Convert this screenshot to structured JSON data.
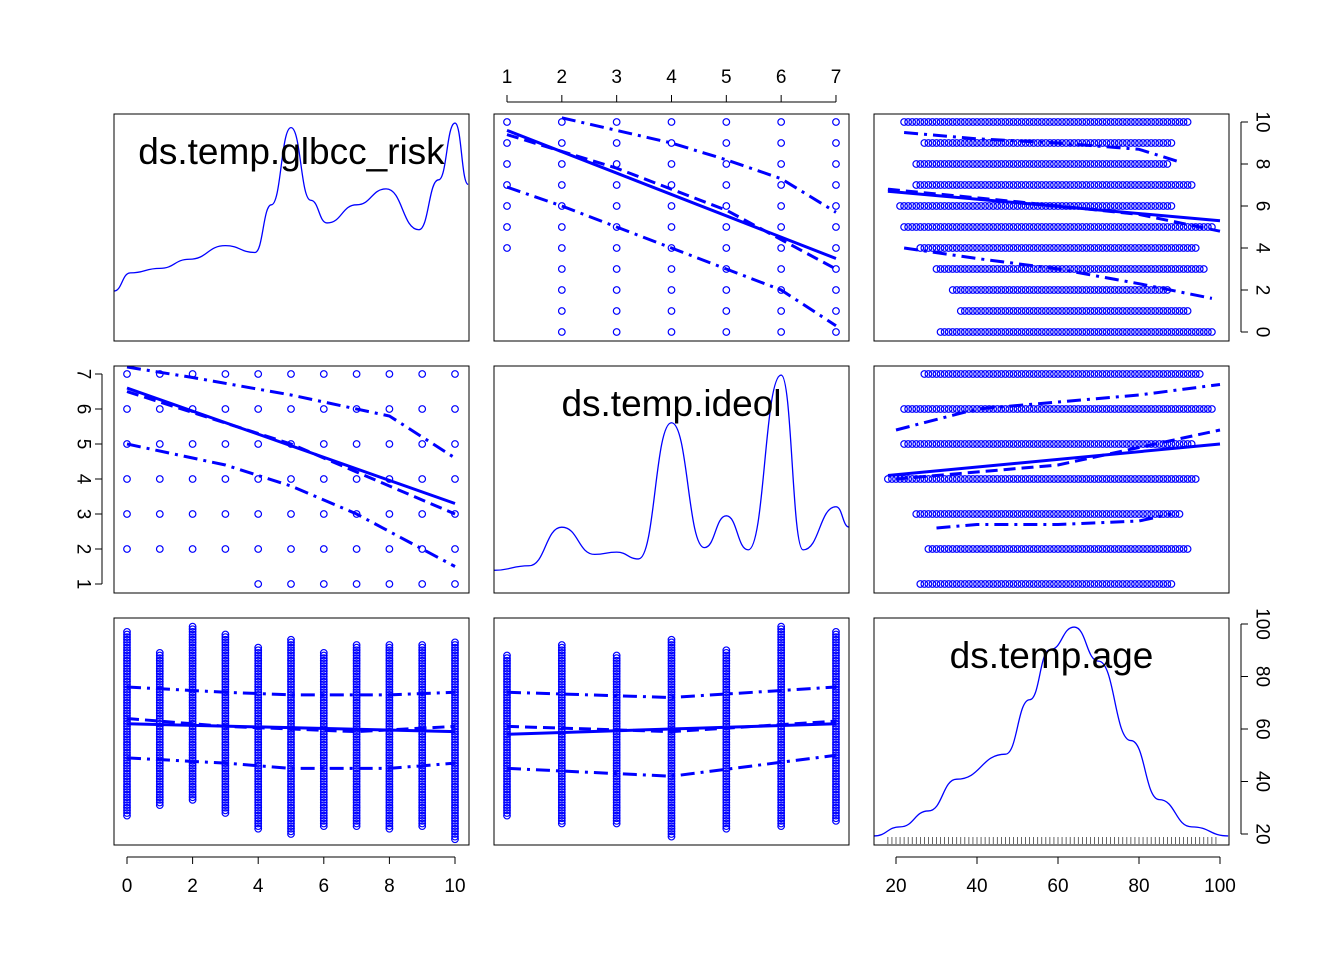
{
  "chart_data": {
    "type": "scatter-matrix",
    "color": "#0000FF",
    "variables": [
      "ds.temp.glbcc_risk",
      "ds.temp.ideol",
      "ds.temp.age"
    ],
    "ranges": {
      "ds.temp.glbcc_risk": [
        0,
        10
      ],
      "ds.temp.ideol": [
        1,
        7
      ],
      "ds.temp.age": [
        18,
        99
      ]
    },
    "ticks": {
      "ds.temp.glbcc_risk": [
        "0",
        "2",
        "4",
        "6",
        "8",
        "10"
      ],
      "ds.temp.ideol": [
        "1",
        "2",
        "3",
        "4",
        "5",
        "6",
        "7"
      ],
      "ds.temp.age": [
        "20",
        "40",
        "60",
        "80",
        "100"
      ]
    },
    "ticks_minor_ideol_risk": [
      "0",
      "1",
      "2",
      "3",
      "4",
      "5",
      "6",
      "7",
      "8",
      "9",
      "10"
    ],
    "densities": {
      "ds.temp.glbcc_risk": [
        [
          -0.4,
          0.22
        ],
        [
          0.1,
          0.3
        ],
        [
          1,
          0.32
        ],
        [
          1.9,
          0.36
        ],
        [
          3,
          0.42
        ],
        [
          3.9,
          0.39
        ],
        [
          4.4,
          0.6
        ],
        [
          5,
          0.94
        ],
        [
          5.6,
          0.62
        ],
        [
          6.1,
          0.52
        ],
        [
          7,
          0.6
        ],
        [
          7.9,
          0.67
        ],
        [
          8.9,
          0.49
        ],
        [
          9.5,
          0.71
        ],
        [
          10,
          0.96
        ],
        [
          10.4,
          0.69
        ]
      ],
      "ds.temp.ideol": [
        [
          0.76,
          0.1
        ],
        [
          1.4,
          0.12
        ],
        [
          2.0,
          0.29
        ],
        [
          2.6,
          0.17
        ],
        [
          3.0,
          0.18
        ],
        [
          3.4,
          0.15
        ],
        [
          4.0,
          0.75
        ],
        [
          4.6,
          0.2
        ],
        [
          5.0,
          0.34
        ],
        [
          5.4,
          0.19
        ],
        [
          6.0,
          0.96
        ],
        [
          6.4,
          0.19
        ],
        [
          7.0,
          0.38
        ],
        [
          7.24,
          0.29
        ]
      ],
      "ds.temp.age": [
        [
          14.6,
          0.04
        ],
        [
          21,
          0.08
        ],
        [
          28,
          0.15
        ],
        [
          35,
          0.29
        ],
        [
          47,
          0.4
        ],
        [
          53,
          0.64
        ],
        [
          58,
          0.86
        ],
        [
          64,
          0.96
        ],
        [
          70,
          0.81
        ],
        [
          78,
          0.46
        ],
        [
          85,
          0.2
        ],
        [
          93,
          0.08
        ],
        [
          102,
          0.04
        ]
      ]
    },
    "panels": [
      {
        "row": 0,
        "col": 1,
        "x": "ds.temp.ideol",
        "y": "ds.temp.glbcc_risk",
        "point_columns": [
          [
            1,
            4,
            10
          ],
          [
            2,
            0,
            10
          ],
          [
            3,
            0,
            10
          ],
          [
            4,
            0,
            10
          ],
          [
            5,
            0,
            10
          ],
          [
            6,
            0,
            10
          ],
          [
            7,
            0,
            10
          ]
        ],
        "fit": [
          [
            1,
            9.6
          ],
          [
            7,
            3.5
          ]
        ],
        "smooth": [
          [
            1,
            9.4
          ],
          [
            3,
            7.8
          ],
          [
            5,
            5.8
          ],
          [
            7,
            3.0
          ]
        ],
        "spread_upper": [
          [
            2,
            10.2
          ],
          [
            4,
            9.0
          ],
          [
            5,
            8.2
          ],
          [
            6,
            7.3
          ],
          [
            7,
            5.7
          ]
        ],
        "spread_lower": [
          [
            1,
            6.9
          ],
          [
            2,
            6.0
          ],
          [
            3,
            5.0
          ],
          [
            4,
            4.0
          ],
          [
            5,
            3.0
          ],
          [
            6,
            2.0
          ],
          [
            7,
            0.3
          ]
        ]
      },
      {
        "row": 0,
        "col": 2,
        "x": "ds.temp.age",
        "y": "ds.temp.glbcc_risk",
        "point_rows": [
          [
            10,
            22,
            92
          ],
          [
            9,
            27,
            88
          ],
          [
            8,
            25,
            87
          ],
          [
            7,
            25,
            93
          ],
          [
            6,
            21,
            88
          ],
          [
            5,
            22,
            98
          ],
          [
            4,
            26,
            94
          ],
          [
            3,
            30,
            96
          ],
          [
            2,
            34,
            87
          ],
          [
            1,
            36,
            92
          ],
          [
            0,
            31,
            98
          ]
        ],
        "fit": [
          [
            18,
            6.7
          ],
          [
            100,
            5.3
          ]
        ],
        "smooth": [
          [
            18,
            6.8
          ],
          [
            50,
            6.2
          ],
          [
            80,
            5.6
          ],
          [
            100,
            4.8
          ]
        ],
        "spread_upper": [
          [
            22,
            9.5
          ],
          [
            40,
            9.2
          ],
          [
            60,
            9.0
          ],
          [
            80,
            8.7
          ],
          [
            90,
            8.1
          ]
        ],
        "spread_lower": [
          [
            22,
            4.0
          ],
          [
            40,
            3.5
          ],
          [
            60,
            3.0
          ],
          [
            80,
            2.3
          ],
          [
            98,
            1.6
          ]
        ]
      },
      {
        "row": 1,
        "col": 0,
        "x": "ds.temp.glbcc_risk",
        "y": "ds.temp.ideol",
        "point_columns": [
          [
            0,
            2,
            7
          ],
          [
            1,
            2,
            7
          ],
          [
            2,
            2,
            7
          ],
          [
            3,
            2,
            7
          ],
          [
            4,
            1,
            7
          ],
          [
            5,
            1,
            7
          ],
          [
            6,
            1,
            7
          ],
          [
            7,
            1,
            7
          ],
          [
            8,
            1,
            7
          ],
          [
            9,
            1,
            7
          ],
          [
            10,
            1,
            7
          ]
        ],
        "fit": [
          [
            0,
            6.6
          ],
          [
            10,
            3.3
          ]
        ],
        "smooth": [
          [
            0,
            6.5
          ],
          [
            5,
            5.0
          ],
          [
            10,
            3.0
          ]
        ],
        "spread_upper": [
          [
            0,
            7.2
          ],
          [
            2,
            6.9
          ],
          [
            5,
            6.4
          ],
          [
            8,
            5.8
          ],
          [
            10,
            4.6
          ]
        ],
        "spread_lower": [
          [
            0,
            5.0
          ],
          [
            3,
            4.4
          ],
          [
            5,
            3.8
          ],
          [
            7,
            3.0
          ],
          [
            10,
            1.5
          ]
        ]
      },
      {
        "row": 1,
        "col": 2,
        "x": "ds.temp.age",
        "y": "ds.temp.ideol",
        "point_rows": [
          [
            7,
            27,
            95
          ],
          [
            6,
            22,
            98
          ],
          [
            5,
            22,
            93
          ],
          [
            4,
            18,
            94
          ],
          [
            3,
            25,
            90
          ],
          [
            2,
            28,
            92
          ],
          [
            1,
            26,
            88
          ]
        ],
        "fit": [
          [
            18,
            4.1
          ],
          [
            100,
            5.0
          ]
        ],
        "smooth": [
          [
            20,
            4.0
          ],
          [
            60,
            4.4
          ],
          [
            100,
            5.4
          ]
        ],
        "spread_upper": [
          [
            20,
            5.4
          ],
          [
            40,
            6.0
          ],
          [
            60,
            6.2
          ],
          [
            80,
            6.4
          ],
          [
            100,
            6.7
          ]
        ],
        "spread_lower": [
          [
            30,
            2.6
          ],
          [
            40,
            2.7
          ],
          [
            60,
            2.7
          ],
          [
            80,
            2.8
          ],
          [
            88,
            3.0
          ]
        ]
      },
      {
        "row": 2,
        "col": 0,
        "x": "ds.temp.glbcc_risk",
        "y": "ds.temp.age",
        "point_columns": [
          [
            0,
            27,
            97
          ],
          [
            1,
            31,
            89
          ],
          [
            2,
            33,
            99
          ],
          [
            3,
            28,
            96
          ],
          [
            4,
            22,
            91
          ],
          [
            5,
            20,
            94
          ],
          [
            6,
            23,
            89
          ],
          [
            7,
            23,
            92
          ],
          [
            8,
            22,
            92
          ],
          [
            9,
            23,
            92
          ],
          [
            10,
            18,
            93
          ]
        ],
        "fit": [
          [
            0,
            62
          ],
          [
            10,
            59
          ]
        ],
        "smooth": [
          [
            0,
            64
          ],
          [
            3,
            61
          ],
          [
            7,
            59
          ],
          [
            10,
            61
          ]
        ],
        "spread_upper": [
          [
            0,
            76
          ],
          [
            3,
            74
          ],
          [
            5,
            73
          ],
          [
            8,
            73
          ],
          [
            10,
            74
          ]
        ],
        "spread_lower": [
          [
            0,
            49
          ],
          [
            3,
            47
          ],
          [
            5,
            45
          ],
          [
            8,
            45
          ],
          [
            10,
            47
          ]
        ]
      },
      {
        "row": 2,
        "col": 1,
        "x": "ds.temp.ideol",
        "y": "ds.temp.age",
        "point_columns": [
          [
            1,
            27,
            88
          ],
          [
            2,
            24,
            92
          ],
          [
            3,
            24,
            88
          ],
          [
            4,
            19,
            94
          ],
          [
            5,
            22,
            90
          ],
          [
            6,
            23,
            99
          ],
          [
            7,
            25,
            97
          ]
        ],
        "fit": [
          [
            1,
            58
          ],
          [
            7,
            62
          ]
        ],
        "smooth": [
          [
            1,
            61
          ],
          [
            4,
            59
          ],
          [
            7,
            63
          ]
        ],
        "spread_upper": [
          [
            1,
            74
          ],
          [
            4,
            72
          ],
          [
            7,
            76
          ]
        ],
        "spread_lower": [
          [
            1,
            45
          ],
          [
            4,
            42
          ],
          [
            7,
            50
          ]
        ]
      }
    ]
  }
}
